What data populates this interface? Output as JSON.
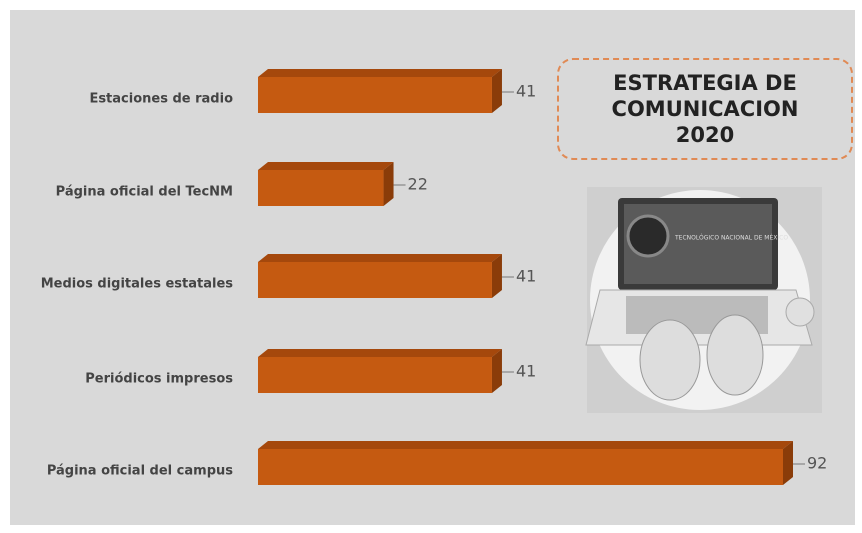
{
  "chart_data": {
    "type": "bar3d",
    "orientation": "horizontal",
    "title": "ESTRATEGIA DE COMUNICACION 2020",
    "categories": [
      "Estaciones de radio",
      "Página oficial del TecNM",
      "Medios digitales estatales",
      "Periódicos impresos",
      "Página oficial del campus"
    ],
    "values": [
      41,
      22,
      41,
      41,
      92
    ],
    "color": "#c55a11",
    "image_caption": "TECNOLÓGICO NACIONAL DE MÉXICO"
  }
}
